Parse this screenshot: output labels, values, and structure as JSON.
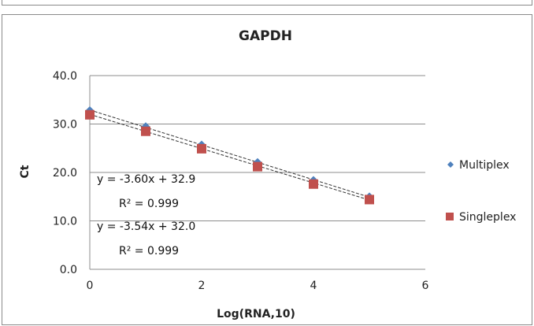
{
  "chart_data": {
    "type": "scatter",
    "title": "GAPDH",
    "xlabel": "Log(RNA,10)",
    "ylabel": "Ct",
    "xlim": [
      0,
      6
    ],
    "ylim": [
      0,
      40
    ],
    "x_ticks": [
      "0",
      "2",
      "4",
      "6"
    ],
    "y_ticks": [
      "0.0",
      "10.0",
      "20.0",
      "30.0",
      "40.0"
    ],
    "gridlines": "horizontal",
    "legend_position": "right",
    "series": [
      {
        "name": "Multiplex",
        "marker": "diamond",
        "color": "#4f81bd",
        "x": [
          0,
          1,
          2,
          3,
          4,
          5
        ],
        "y": [
          32.7,
          29.4,
          25.6,
          22.0,
          18.3,
          14.9
        ],
        "trendline": {
          "slope": -3.6,
          "intercept": 32.9
        },
        "equation": "y = -3.60x + 32.9",
        "r2": "R² = 0.999"
      },
      {
        "name": "Singleplex",
        "marker": "square",
        "color": "#c0504d",
        "x": [
          0,
          1,
          2,
          3,
          4,
          5
        ],
        "y": [
          31.9,
          28.5,
          24.9,
          21.2,
          17.6,
          14.4
        ],
        "trendline": {
          "slope": -3.54,
          "intercept": 32.0
        },
        "equation": "y = -3.54x + 32.0",
        "r2": "R² = 0.999"
      }
    ]
  }
}
